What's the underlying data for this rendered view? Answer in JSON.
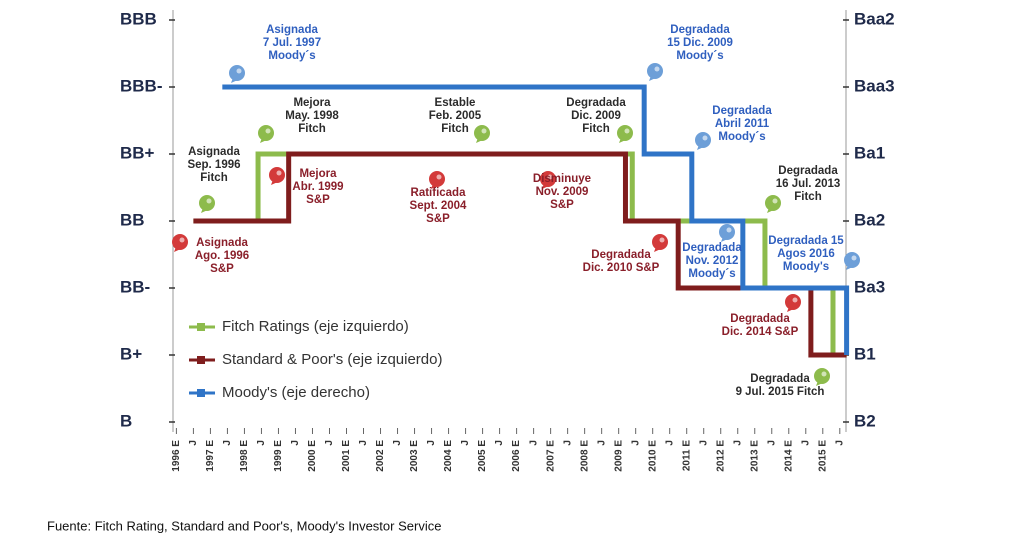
{
  "chart_data": {
    "type": "line",
    "source": "Fuente: Fitch Rating, Standard and Poor's, Moody's Investor Service",
    "xlim": [
      1995.9,
      2015.8
    ],
    "xticks": [
      {
        "value": 1996,
        "label": "1996 E"
      },
      {
        "value": 1996.5,
        "label": "J"
      },
      {
        "value": 1997,
        "label": "1997 E"
      },
      {
        "value": 1997.5,
        "label": "J"
      },
      {
        "value": 1998,
        "label": "1998 E"
      },
      {
        "value": 1998.5,
        "label": "J"
      },
      {
        "value": 1999,
        "label": "1999 E"
      },
      {
        "value": 1999.5,
        "label": "J"
      },
      {
        "value": 2000,
        "label": "2000 E"
      },
      {
        "value": 2000.5,
        "label": "J"
      },
      {
        "value": 2001,
        "label": "2001 E"
      },
      {
        "value": 2001.5,
        "label": "J"
      },
      {
        "value": 2002,
        "label": "2002 E"
      },
      {
        "value": 2002.5,
        "label": "J"
      },
      {
        "value": 2003,
        "label": "2003 E"
      },
      {
        "value": 2003.5,
        "label": "J"
      },
      {
        "value": 2004,
        "label": "2004 E"
      },
      {
        "value": 2004.5,
        "label": "J"
      },
      {
        "value": 2005,
        "label": "2005 E"
      },
      {
        "value": 2005.5,
        "label": "J"
      },
      {
        "value": 2006,
        "label": "2006 E"
      },
      {
        "value": 2006.5,
        "label": "J"
      },
      {
        "value": 2007,
        "label": "2007 E"
      },
      {
        "value": 2007.5,
        "label": "J"
      },
      {
        "value": 2008,
        "label": "2008 E"
      },
      {
        "value": 2008.5,
        "label": "J"
      },
      {
        "value": 2009,
        "label": "2009 E"
      },
      {
        "value": 2009.5,
        "label": "J"
      },
      {
        "value": 2010,
        "label": "2010 E"
      },
      {
        "value": 2010.5,
        "label": "J"
      },
      {
        "value": 2011,
        "label": "2011 E"
      },
      {
        "value": 2011.5,
        "label": "J"
      },
      {
        "value": 2012,
        "label": "2012 E"
      },
      {
        "value": 2012.5,
        "label": "J"
      },
      {
        "value": 2013,
        "label": "2013 E"
      },
      {
        "value": 2013.5,
        "label": "J"
      },
      {
        "value": 2014,
        "label": "2014 E"
      },
      {
        "value": 2014.5,
        "label": "J"
      },
      {
        "value": 2015,
        "label": "2015 E"
      },
      {
        "value": 2015.5,
        "label": "J"
      }
    ],
    "ylim": [
      0,
      6
    ],
    "yticks": [
      {
        "value": 6,
        "label": "BBB"
      },
      {
        "value": 5,
        "label": "BBB-"
      },
      {
        "value": 4,
        "label": "BB+"
      },
      {
        "value": 3,
        "label": "BB"
      },
      {
        "value": 2,
        "label": "BB-"
      },
      {
        "value": 1,
        "label": "B+"
      },
      {
        "value": 0,
        "label": "B"
      }
    ],
    "y2lim": [
      0,
      6
    ],
    "y2ticks": [
      {
        "value": 6,
        "label": "Baa2"
      },
      {
        "value": 5,
        "label": "Baa3"
      },
      {
        "value": 4,
        "label": "Ba1"
      },
      {
        "value": 3,
        "label": "Ba2"
      },
      {
        "value": 2,
        "label": "Ba3"
      },
      {
        "value": 1,
        "label": "B1"
      },
      {
        "value": 0,
        "label": "B2"
      }
    ],
    "legend": "lower left",
    "series": [
      {
        "name": "Fitch Ratings (eje izquierdo)",
        "color": "#8dbb4c",
        "annotation_color": "#2b2b2b",
        "x": [
          1996.5,
          1998.4,
          1998.4,
          2009.4,
          2009.4,
          2013.3,
          2013.3,
          2015.3,
          2015.3,
          2015.7
        ],
        "values": [
          3,
          3,
          4,
          4,
          3,
          3,
          2,
          2,
          1,
          1
        ],
        "annotations": [
          [
            "Mejora",
            "May. 1998",
            "Fitch"
          ],
          [
            "Estable",
            "Feb. 2005",
            "Fitch"
          ],
          [
            "Degradada",
            "Dic. 2009",
            "Fitch"
          ],
          [
            "Asignada",
            "Sep. 1996",
            "Fitch"
          ],
          [
            "Degradada",
            "16 Jul. 2013",
            "Fitch"
          ],
          [
            "Degradada",
            "9 Jul. 2015 Fitch"
          ]
        ]
      },
      {
        "name": "Standard & Poor's (eje izquierdo)",
        "color": "#7f1d1d",
        "annotation_color": "#8a1f2a",
        "x": [
          1996.5,
          1999.3,
          1999.3,
          2009.2,
          2009.2,
          2010.75,
          2010.75,
          2014.65,
          2014.65,
          2015.7
        ],
        "values": [
          3,
          3,
          4,
          4,
          3,
          3,
          2,
          2,
          1,
          1
        ],
        "annotations": [
          [
            "Asignada",
            "Ago. 1996",
            "S&P"
          ],
          [
            "Mejora",
            "Abr. 1999",
            "S&P"
          ],
          [
            "Ratificada",
            "Sept. 2004",
            "S&P"
          ],
          [
            "Disminuye",
            "Nov. 2009",
            "S&P"
          ],
          [
            "Degradada",
            "Dic. 2010 S&P"
          ],
          [
            "Degradada",
            "Dic. 2014 S&P"
          ]
        ]
      },
      {
        "name": "Moody's (eje derecho)",
        "color": "#2f74c7",
        "annotation_color": "#2f5fbf",
        "axis": "y2",
        "x": [
          1997.35,
          2009.75,
          2009.75,
          2011.15,
          2011.15,
          2012.65,
          2012.65,
          2015.7,
          2015.7
        ],
        "values": [
          5,
          5,
          4,
          4,
          3,
          3,
          2,
          2,
          1
        ],
        "annotations": [
          [
            "Asignada",
            "7 Jul. 1997",
            "Moody´s"
          ],
          [
            "Degradada",
            "15 Dic. 2009",
            "Moody´s"
          ],
          [
            "Degradada",
            "Abril 2011",
            "Moody´s"
          ],
          [
            "Degradada",
            "Nov. 2012",
            "Moody´s"
          ],
          [
            "Degradada 15",
            "Agos 2016",
            "Moody's"
          ]
        ]
      }
    ]
  }
}
